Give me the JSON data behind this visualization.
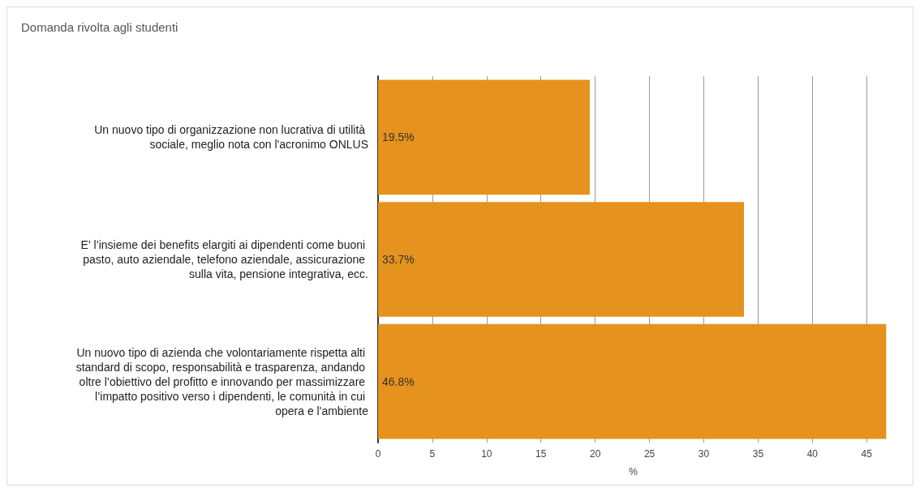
{
  "chart_data": {
    "type": "bar",
    "orientation": "horizontal",
    "title": "Domanda rivolta agli studenti",
    "xlabel": "%",
    "categories": [
      "Un nuovo tipo di organizzazione non lucrativa di utilità sociale, meglio nota con l'acronimo ONLUS",
      "E' l’insieme dei benefits elargiti ai dipendenti come buoni pasto, auto aziendale, telefono aziendale, assicurazione sulla vita, pensione integrativa, ecc.",
      "Un nuovo tipo di azienda che volontariamente rispetta alti standard di scopo, responsabilità e trasparenza, andando oltre l’obiettivo del profitto e innovando per massimizzare l’impatto positivo verso i dipendenti, le comunità in cui opera e l'ambiente"
    ],
    "values": [
      19.5,
      33.7,
      46.8
    ],
    "value_labels": [
      "19.5%",
      "33.7%",
      "46.8%"
    ],
    "color": "#e6921e",
    "xlim": [
      0,
      47
    ],
    "xticks": [
      0,
      5,
      10,
      15,
      20,
      25,
      30,
      35,
      40,
      45
    ],
    "grid": "x"
  }
}
